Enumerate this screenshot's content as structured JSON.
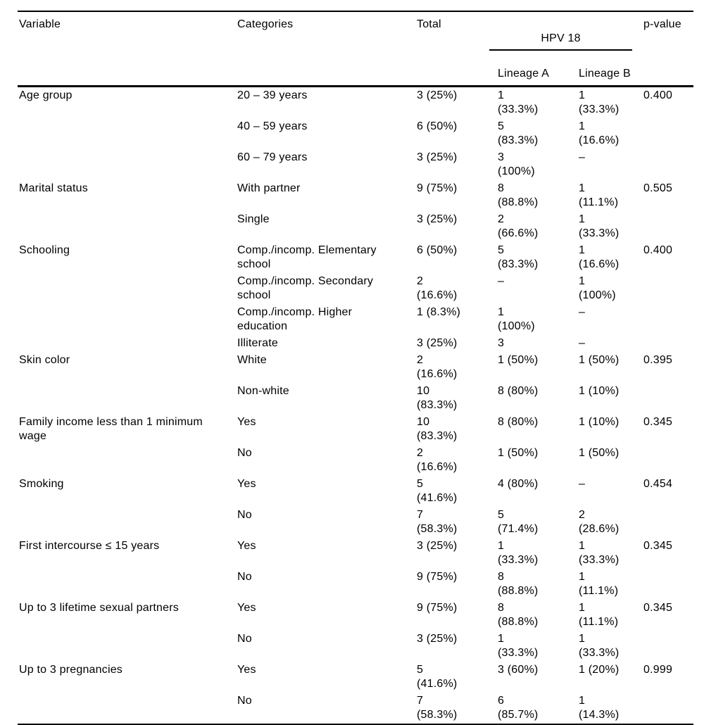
{
  "colors": {
    "text": "#000000",
    "background": "#ffffff",
    "rule": "#000000"
  },
  "table": {
    "header": {
      "variable": "Variable",
      "categories": "Categories",
      "total": "Total",
      "hpv_group": "HPV 18",
      "lineage_a": "Lineage A",
      "lineage_b": "Lineage B",
      "p_value": "p-value"
    },
    "rows": [
      {
        "variable": "Age group",
        "category": "20 – 39 years",
        "total": "3 (25%)",
        "lineage_a": "1\n(33.3%)",
        "lineage_b": "1\n(33.3%)",
        "p_value": "0.400"
      },
      {
        "variable": "",
        "category": "40 – 59 years",
        "total": "6 (50%)",
        "lineage_a": "5\n(83.3%)",
        "lineage_b": "1\n(16.6%)",
        "p_value": ""
      },
      {
        "variable": "",
        "category": "60 – 79 years",
        "total": "3 (25%)",
        "lineage_a": "3\n(100%)",
        "lineage_b": "–",
        "p_value": ""
      },
      {
        "variable": "Marital status",
        "category": "With partner",
        "total": "9 (75%)",
        "lineage_a": "8\n(88.8%)",
        "lineage_b": "1\n(11.1%)",
        "p_value": "0.505"
      },
      {
        "variable": "",
        "category": "Single",
        "total": "3 (25%)",
        "lineage_a": "2\n(66.6%)",
        "lineage_b": "1\n(33.3%)",
        "p_value": ""
      },
      {
        "variable": "Schooling",
        "category": "Comp./incomp. Elementary\nschool",
        "total": "6 (50%)",
        "lineage_a": "5\n(83.3%)",
        "lineage_b": "1\n(16.6%)",
        "p_value": "0.400"
      },
      {
        "variable": "",
        "category": "Comp./incomp. Secondary\nschool",
        "total": "2\n(16.6%)",
        "lineage_a": "–",
        "lineage_b": "1\n(100%)",
        "p_value": ""
      },
      {
        "variable": "",
        "category": "Comp./incomp. Higher\neducation",
        "total": "1 (8.3%)",
        "lineage_a": "1\n(100%)",
        "lineage_b": "–",
        "p_value": ""
      },
      {
        "variable": "",
        "category": "Illiterate",
        "total": "3 (25%)",
        "lineage_a": "3",
        "lineage_b": "–",
        "p_value": ""
      },
      {
        "variable": "Skin color",
        "category": "White",
        "total": "2\n(16.6%)",
        "lineage_a": "1 (50%)",
        "lineage_b": "1 (50%)",
        "p_value": "0.395"
      },
      {
        "variable": "",
        "category": "Non-white",
        "total": "10\n(83.3%)",
        "lineage_a": "8 (80%)",
        "lineage_b": "1 (10%)",
        "p_value": ""
      },
      {
        "variable": "Family income less than 1 minimum\nwage",
        "category": "Yes",
        "total": "10\n(83.3%)",
        "lineage_a": "8 (80%)",
        "lineage_b": "1 (10%)",
        "p_value": "0.345"
      },
      {
        "variable": "",
        "category": "No",
        "total": "2\n(16.6%)",
        "lineage_a": "1 (50%)",
        "lineage_b": "1 (50%)",
        "p_value": ""
      },
      {
        "variable": "Smoking",
        "category": "Yes",
        "total": "5\n(41.6%)",
        "lineage_a": "4 (80%)",
        "lineage_b": "–",
        "p_value": "0.454"
      },
      {
        "variable": "",
        "category": "No",
        "total": "7\n(58.3%)",
        "lineage_a": "5\n(71.4%)",
        "lineage_b": "2\n(28.6%)",
        "p_value": ""
      },
      {
        "variable": "First intercourse ≤ 15 years",
        "category": "Yes",
        "total": "3 (25%)",
        "lineage_a": "1\n(33.3%)",
        "lineage_b": "1\n(33.3%)",
        "p_value": "0.345"
      },
      {
        "variable": "",
        "category": "No",
        "total": "9 (75%)",
        "lineage_a": "8\n(88.8%)",
        "lineage_b": "1\n(11.1%)",
        "p_value": ""
      },
      {
        "variable": "Up to 3 lifetime sexual partners",
        "category": "Yes",
        "total": "9 (75%)",
        "lineage_a": "8\n(88.8%)",
        "lineage_b": "1\n(11.1%)",
        "p_value": "0.345"
      },
      {
        "variable": "",
        "category": "No",
        "total": "3 (25%)",
        "lineage_a": "1\n(33.3%)",
        "lineage_b": "1\n(33.3%)",
        "p_value": ""
      },
      {
        "variable": "Up to 3 pregnancies",
        "category": "Yes",
        "total": "5\n(41.6%)",
        "lineage_a": "3 (60%)",
        "lineage_b": "1 (20%)",
        "p_value": "0.999"
      },
      {
        "variable": "",
        "category": "No",
        "total": "7\n(58.3%)",
        "lineage_a": "6\n(85.7%)",
        "lineage_b": "1\n(14.3%)",
        "p_value": ""
      }
    ]
  }
}
